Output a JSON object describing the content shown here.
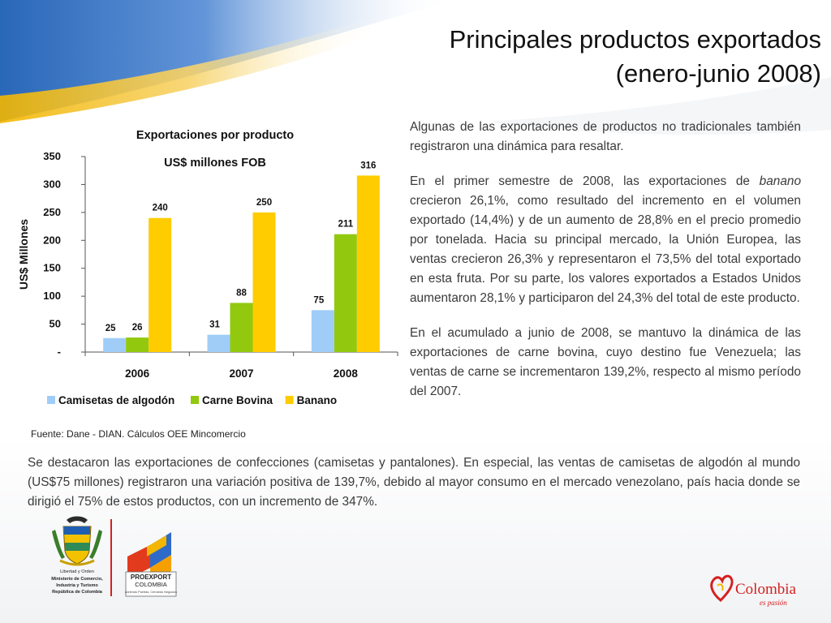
{
  "slide": {
    "title_line1": "Principales productos exportados",
    "title_line2": "(enero-junio 2008)"
  },
  "chart_data": {
    "type": "bar",
    "title": "Exportaciones por producto",
    "subtitle": "US$ millones FOB",
    "ylabel": "US$ Millones",
    "xlabel": "",
    "categories": [
      "2006",
      "2007",
      "2008"
    ],
    "series": [
      {
        "name": "Camisetas de algodón",
        "values": [
          25,
          31,
          75
        ],
        "labels": [
          "25",
          "31",
          "75"
        ],
        "color": "#9fcdf8"
      },
      {
        "name": "Carne Bovina",
        "values": [
          26,
          88,
          211
        ],
        "labels": [
          "26",
          "88",
          "211"
        ],
        "color": "#92c90e"
      },
      {
        "name": "Banano",
        "values": [
          240,
          250,
          316
        ],
        "labels": [
          "240",
          "250",
          "316"
        ],
        "color": "#ffcc00"
      }
    ],
    "ylim": [
      0,
      350
    ],
    "yticks": [
      0,
      50,
      100,
      150,
      200,
      250,
      300,
      350
    ],
    "ytick_labels": [
      "-",
      "50",
      "100",
      "150",
      "200",
      "250",
      "300",
      "350"
    ],
    "grid": false,
    "legend": "bottom"
  },
  "source_note": "Fuente: Dane - DIAN. Cálculos OEE Mincomercio",
  "side_paragraphs": [
    {
      "text": "Algunas de las exportaciones de productos no tradicionales también registraron una  dinámica para resaltar."
    },
    {
      "before": "En el primer semestre de 2008, las exportaciones de ",
      "em": "banano",
      "after": " crecieron 26,1%, como resultado del incremento en el volumen exportado (14,4%) y de un aumento de 28,8% en el precio promedio por tonelada. Hacia su principal mercado, la Unión Europea, las ventas crecieron 26,3% y representaron el 73,5% del total exportado en esta fruta. Por su parte, los valores exportados a Estados Unidos aumentaron 28,1% y participaron del 24,3% del total de este producto."
    },
    {
      "text": "En el acumulado a junio de 2008, se mantuvo la dinámica de las exportaciones de carne bovina, cuyo destino fue Venezuela; las ventas de carne se incrementaron 139,2%, respecto al mismo período del 2007."
    }
  ],
  "bottom_paragraph": "Se destacaron las exportaciones de confecciones (camisetas y pantalones). En especial, las ventas de camisetas de algodón al mundo (US$75 millones) registraron una variación positiva de 139,7%, debido al mayor consumo en el mercado venezolano, país hacia donde se dirigió el 75% de estos productos, con un incremento de 347%.",
  "logos": {
    "ministry_lines": [
      "Libertad y Orden",
      "Ministerio de Comercio,",
      "Industria y Turismo",
      "República de Colombia"
    ],
    "proexport_name": "PROEXPORT",
    "proexport_country": "COLOMBIA",
    "proexport_tagline": "Abriendo Puertas, Cerrando Negocios",
    "colombia_brand": "Colombia",
    "colombia_tagline": "es pasión"
  },
  "colors": {
    "header_blue": "#1e5fb4",
    "header_gold": "#f2b600",
    "accent_red": "#d42020"
  }
}
